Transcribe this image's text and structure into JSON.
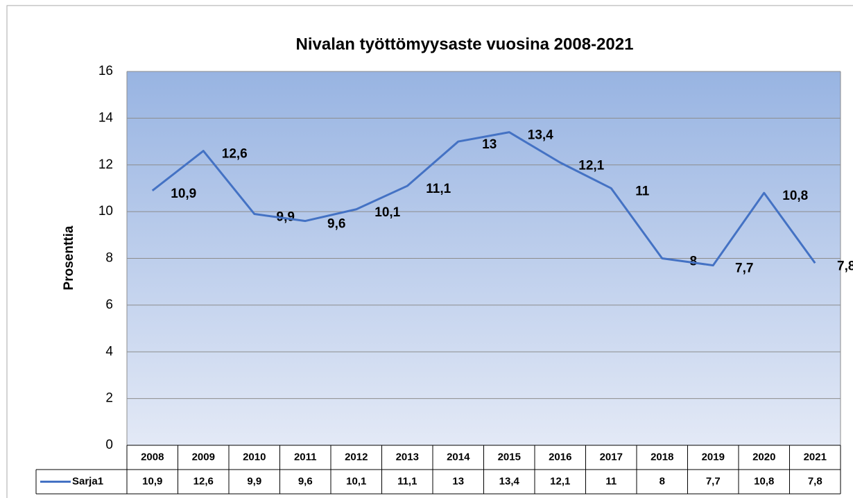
{
  "chart_data": {
    "type": "line",
    "title": "Nivalan työttömyysaste vuosina 2008-2021",
    "y_label": "Prosenttia",
    "categories": [
      "2008",
      "2009",
      "2010",
      "2011",
      "2012",
      "2013",
      "2014",
      "2015",
      "2016",
      "2017",
      "2018",
      "2019",
      "2020",
      "2021"
    ],
    "series": [
      {
        "name": "Sarja1",
        "color": "#4472c4",
        "values": [
          10.9,
          12.6,
          9.9,
          9.6,
          10.1,
          11.1,
          13,
          13.4,
          12.1,
          11,
          8,
          7.7,
          10.8,
          7.8
        ],
        "value_labels": [
          "10,9",
          "12,6",
          "9,9",
          "9,6",
          "10,1",
          "11,1",
          "13",
          "13,4",
          "12,1",
          "11",
          "8",
          "7,7",
          "10,8",
          "7,8"
        ]
      }
    ],
    "ylim": [
      0,
      16
    ],
    "yticks": [
      0,
      2,
      4,
      6,
      8,
      10,
      12,
      14,
      16
    ],
    "grid": true
  }
}
